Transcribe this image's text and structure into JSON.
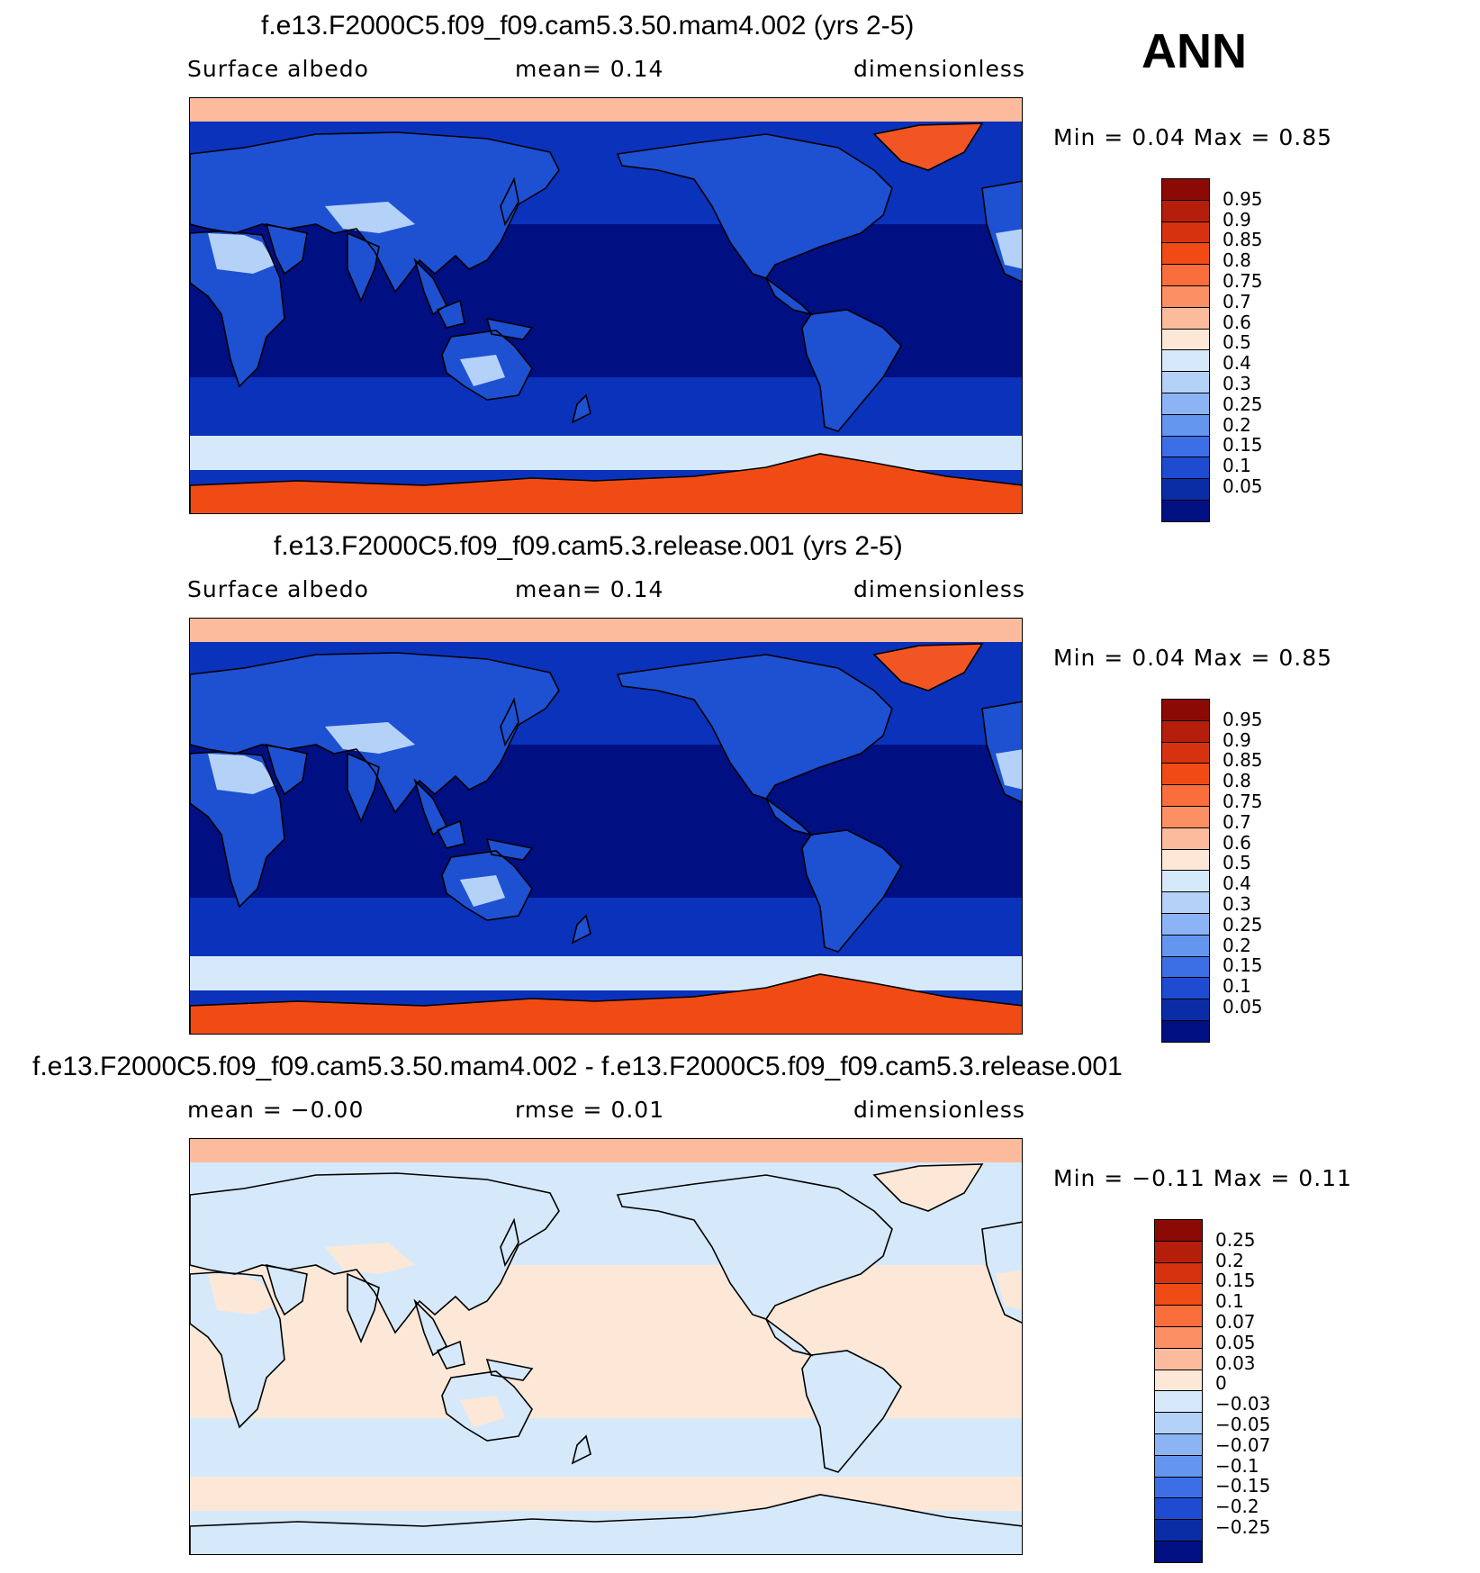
{
  "season": "ANN",
  "panels": [
    {
      "title": "f.e13.F2000C5.f09_f09.cam5.3.50.mam4.002 (yrs 2-5)",
      "left_label": "Surface  albedo",
      "center_label": "mean=    0.14",
      "right_label": "dimensionless",
      "minmax": "Min =     0.04  Max =     0.85",
      "colorbar_labels": [
        "0.95",
        "0.9",
        "0.85",
        "0.8",
        "0.75",
        "0.7",
        "0.6",
        "0.5",
        "0.4",
        "0.3",
        "0.25",
        "0.2",
        "0.15",
        "0.1",
        "0.05"
      ],
      "colorbar_colors": [
        "#8c0a05",
        "#b41e0a",
        "#d7320f",
        "#f04b14",
        "#fa6e3c",
        "#fc8f64",
        "#fdbb9e",
        "#fde8d8",
        "#d6e9fa",
        "#b4d2f8",
        "#8cb4f5",
        "#6496f0",
        "#3c6ee6",
        "#1e4bd2",
        "#0a2da5",
        "#000f82"
      ],
      "zone_colors": {
        "arctic_sea": "#fdbb9e",
        "greenland": "#f05523",
        "antarctica": "#f04b14",
        "antarctic_sea_ice": "#d6e9fa",
        "ocean_high_lat": "#0a32bb",
        "ocean_tropical": "#000f82",
        "land": "#1e50d2",
        "desert": "#b4d2f8"
      }
    },
    {
      "title": "f.e13.F2000C5.f09_f09.cam5.3.release.001 (yrs 2-5)",
      "left_label": "Surface  albedo",
      "center_label": "mean=    0.14",
      "right_label": "dimensionless",
      "minmax": "Min =     0.04  Max =     0.85",
      "colorbar_labels": [
        "0.95",
        "0.9",
        "0.85",
        "0.8",
        "0.75",
        "0.7",
        "0.6",
        "0.5",
        "0.4",
        "0.3",
        "0.25",
        "0.2",
        "0.15",
        "0.1",
        "0.05"
      ],
      "colorbar_colors": [
        "#8c0a05",
        "#b41e0a",
        "#d7320f",
        "#f04b14",
        "#fa6e3c",
        "#fc8f64",
        "#fdbb9e",
        "#fde8d8",
        "#d6e9fa",
        "#b4d2f8",
        "#8cb4f5",
        "#6496f0",
        "#3c6ee6",
        "#1e4bd2",
        "#0a2da5",
        "#000f82"
      ],
      "zone_colors": {
        "arctic_sea": "#fdbb9e",
        "greenland": "#f05523",
        "antarctica": "#f04b14",
        "antarctic_sea_ice": "#d6e9fa",
        "ocean_high_lat": "#0a32bb",
        "ocean_tropical": "#000f82",
        "land": "#1e50d2",
        "desert": "#b4d2f8"
      }
    },
    {
      "title": "f.e13.F2000C5.f09_f09.cam5.3.50.mam4.002 - f.e13.F2000C5.f09_f09.cam5.3.release.001",
      "left_label": "mean  =    −0.00",
      "center_label": "rmse  =     0.01",
      "right_label": "dimensionless",
      "minmax": "Min =   −0.11  Max =     0.11",
      "colorbar_labels": [
        "0.25",
        "0.2",
        "0.15",
        "0.1",
        "0.07",
        "0.05",
        "0.03",
        "0",
        "−0.03",
        "−0.05",
        "−0.07",
        "−0.1",
        "−0.15",
        "−0.2",
        "−0.25"
      ],
      "colorbar_colors": [
        "#8c0a05",
        "#b41e0a",
        "#d7320f",
        "#f04b14",
        "#fa6e3c",
        "#fc8f64",
        "#fdbb9e",
        "#fde8d8",
        "#d6e9fa",
        "#b4d2f8",
        "#8cb4f5",
        "#6496f0",
        "#3c6ee6",
        "#1e4bd2",
        "#0a2da5",
        "#000f82"
      ],
      "zone_colors": {
        "arctic_sea": "#fdbb9e",
        "greenland": "#fde8d8",
        "antarctica": "#d6e9fa",
        "antarctic_sea_ice": "#fde8d8",
        "ocean_high_lat": "#d6e9fa",
        "ocean_tropical": "#fde8d8",
        "land": "#d6e9fa",
        "desert": "#fde8d8"
      }
    }
  ]
}
